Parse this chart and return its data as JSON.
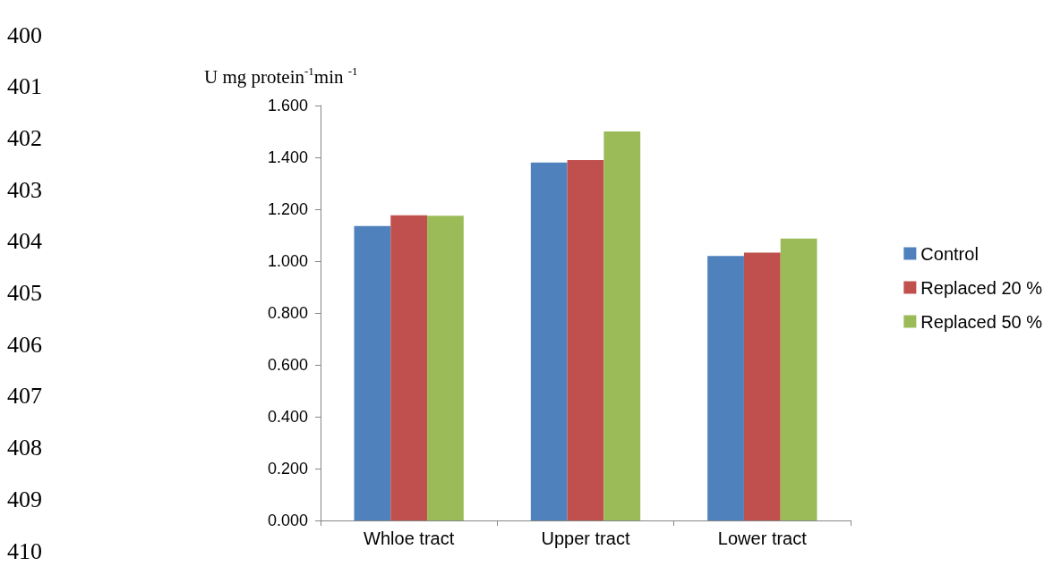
{
  "chart_data": {
    "type": "bar",
    "ylabel": "U mg protein$^{-1}$min $^{-1}$",
    "categories": [
      "Whloe tract",
      "Upper tract",
      "Lower tract"
    ],
    "series": [
      {
        "name": "Control",
        "color": "#4f81bd",
        "values": [
          1.135,
          1.38,
          1.02
        ]
      },
      {
        "name": "Replaced 20 %",
        "color": "#c0504d",
        "values": [
          1.177,
          1.39,
          1.033
        ]
      },
      {
        "name": "Replaced 50 %",
        "color": "#9bbb59",
        "values": [
          1.175,
          1.5,
          1.087
        ]
      }
    ],
    "ylim": [
      0,
      1.6
    ],
    "yticks": [
      {
        "value": 0,
        "label": "0.000"
      },
      {
        "value": 0.2,
        "label": "0.200"
      },
      {
        "value": 0.4,
        "label": "0.400"
      },
      {
        "value": 0.6,
        "label": "0.600"
      },
      {
        "value": 0.8,
        "label": "0.800"
      },
      {
        "value": 1.0,
        "label": "1.000"
      },
      {
        "value": 1.2,
        "label": "1.200"
      },
      {
        "value": 1.4,
        "label": "1.400"
      },
      {
        "value": 1.6,
        "label": "1.600"
      }
    ],
    "grid": false,
    "legend": "right",
    "annotations": [
      "400",
      "401",
      "402",
      "403",
      "404",
      "405",
      "406",
      "407",
      "408",
      "409",
      "410"
    ]
  }
}
